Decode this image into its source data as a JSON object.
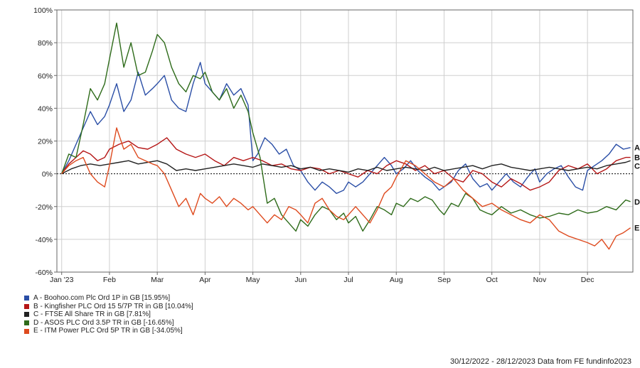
{
  "chart_data": {
    "type": "line",
    "title": "",
    "xlabel": "",
    "ylabel": "",
    "ylim": [
      -60,
      100
    ],
    "yticks": [
      100,
      80,
      60,
      40,
      20,
      0,
      -20,
      -40,
      -60
    ],
    "ytick_format": "{v}%",
    "x_tick_labels": [
      "Jan '23",
      "Feb",
      "Mar",
      "Apr",
      "May",
      "Jun",
      "Jul",
      "Aug",
      "Sep",
      "Oct",
      "Nov",
      "Dec"
    ],
    "x_tick_positions": [
      0,
      1,
      2,
      3,
      4,
      5,
      6,
      7,
      8,
      9,
      10,
      11
    ],
    "xlim": [
      -0.1,
      11.95
    ],
    "grid": true,
    "zero_line": "dashed",
    "legend_position": "bottom-left",
    "series": [
      {
        "key": "A",
        "name": "A - Boohoo.com Plc Ord 1P in GB [15.95%]",
        "color": "#2a4ea6",
        "x": [
          0,
          0.15,
          0.3,
          0.45,
          0.6,
          0.75,
          0.9,
          1.0,
          1.15,
          1.3,
          1.45,
          1.6,
          1.75,
          1.9,
          2.0,
          2.15,
          2.3,
          2.45,
          2.6,
          2.75,
          2.9,
          3.0,
          3.15,
          3.3,
          3.45,
          3.6,
          3.75,
          3.9,
          4.0,
          4.1,
          4.25,
          4.4,
          4.55,
          4.7,
          4.85,
          5.0,
          5.15,
          5.3,
          5.45,
          5.6,
          5.75,
          5.9,
          6.0,
          6.15,
          6.3,
          6.45,
          6.6,
          6.75,
          6.9,
          7.0,
          7.15,
          7.3,
          7.45,
          7.6,
          7.75,
          7.9,
          8.0,
          8.15,
          8.3,
          8.45,
          8.6,
          8.75,
          8.9,
          9.0,
          9.15,
          9.3,
          9.45,
          9.6,
          9.75,
          9.9,
          10.0,
          10.15,
          10.3,
          10.45,
          10.6,
          10.75,
          10.9,
          11.0,
          11.15,
          11.3,
          11.45,
          11.6,
          11.75,
          11.9
        ],
        "y": [
          0,
          8,
          18,
          28,
          38,
          30,
          35,
          42,
          55,
          38,
          45,
          62,
          48,
          52,
          55,
          60,
          45,
          40,
          38,
          55,
          68,
          55,
          50,
          45,
          55,
          48,
          52,
          42,
          8,
          12,
          22,
          18,
          12,
          15,
          5,
          2,
          -5,
          -10,
          -5,
          -8,
          -12,
          -10,
          -5,
          -8,
          -5,
          0,
          5,
          10,
          5,
          0,
          3,
          8,
          2,
          -2,
          -5,
          -10,
          -8,
          -5,
          2,
          6,
          -3,
          -8,
          -6,
          -10,
          -5,
          0,
          -5,
          -8,
          -2,
          3,
          -5,
          0,
          3,
          5,
          -2,
          -8,
          -10,
          2,
          5,
          8,
          12,
          18,
          15,
          16
        ]
      },
      {
        "key": "B",
        "name": "B - Kingfisher PLC Ord 15 5/7P TR in GB [10.04%]",
        "color": "#b51616",
        "x": [
          0,
          0.15,
          0.3,
          0.45,
          0.6,
          0.75,
          0.9,
          1.0,
          1.2,
          1.4,
          1.6,
          1.8,
          2.0,
          2.2,
          2.4,
          2.6,
          2.8,
          3.0,
          3.2,
          3.4,
          3.6,
          3.8,
          4.0,
          4.2,
          4.4,
          4.6,
          4.8,
          5.0,
          5.2,
          5.4,
          5.6,
          5.8,
          6.0,
          6.2,
          6.4,
          6.6,
          6.8,
          7.0,
          7.2,
          7.4,
          7.6,
          7.8,
          8.0,
          8.2,
          8.4,
          8.6,
          8.8,
          9.0,
          9.2,
          9.4,
          9.6,
          9.8,
          10.0,
          10.2,
          10.4,
          10.6,
          10.8,
          11.0,
          11.2,
          11.4,
          11.6,
          11.8,
          11.9
        ],
        "y": [
          0,
          6,
          10,
          14,
          12,
          8,
          10,
          15,
          18,
          20,
          16,
          15,
          18,
          22,
          15,
          12,
          10,
          12,
          8,
          5,
          10,
          8,
          10,
          8,
          5,
          6,
          3,
          2,
          4,
          3,
          0,
          2,
          0,
          -2,
          2,
          0,
          5,
          8,
          6,
          2,
          5,
          0,
          2,
          -3,
          -5,
          2,
          0,
          -5,
          -8,
          -3,
          -6,
          -10,
          -8,
          -5,
          2,
          5,
          3,
          6,
          0,
          3,
          8,
          10,
          10
        ]
      },
      {
        "key": "C",
        "name": "C - FTSE All Share TR in GB [7.81%]",
        "color": "#222222",
        "x": [
          0,
          0.2,
          0.4,
          0.6,
          0.8,
          1.0,
          1.2,
          1.4,
          1.6,
          1.8,
          2.0,
          2.2,
          2.4,
          2.6,
          2.8,
          3.0,
          3.2,
          3.4,
          3.6,
          3.8,
          4.0,
          4.2,
          4.4,
          4.6,
          4.8,
          5.0,
          5.2,
          5.4,
          5.6,
          5.8,
          6.0,
          6.2,
          6.4,
          6.6,
          6.8,
          7.0,
          7.2,
          7.4,
          7.6,
          7.8,
          8.0,
          8.2,
          8.4,
          8.6,
          8.8,
          9.0,
          9.2,
          9.4,
          9.6,
          9.8,
          10.0,
          10.2,
          10.4,
          10.6,
          10.8,
          11.0,
          11.2,
          11.4,
          11.6,
          11.8,
          11.9
        ],
        "y": [
          0,
          3,
          5,
          6,
          5,
          6,
          7,
          8,
          6,
          7,
          8,
          6,
          2,
          3,
          2,
          3,
          4,
          5,
          6,
          5,
          4,
          6,
          5,
          4,
          5,
          3,
          4,
          2,
          3,
          2,
          1,
          3,
          2,
          4,
          2,
          3,
          4,
          3,
          2,
          4,
          2,
          3,
          4,
          5,
          3,
          5,
          6,
          4,
          3,
          2,
          3,
          4,
          3,
          2,
          3,
          4,
          3,
          5,
          6,
          7,
          8
        ]
      },
      {
        "key": "D",
        "name": "D - ASOS PLC Ord 3.5P TR in GB [-16.65%]",
        "color": "#2e6b1a",
        "x": [
          0,
          0.15,
          0.3,
          0.45,
          0.6,
          0.75,
          0.9,
          1.0,
          1.15,
          1.3,
          1.45,
          1.6,
          1.75,
          1.9,
          2.0,
          2.15,
          2.3,
          2.45,
          2.6,
          2.75,
          2.9,
          3.0,
          3.15,
          3.3,
          3.45,
          3.6,
          3.75,
          3.9,
          4.0,
          4.15,
          4.3,
          4.45,
          4.6,
          4.75,
          4.9,
          5.0,
          5.15,
          5.3,
          5.45,
          5.6,
          5.75,
          5.9,
          6.0,
          6.15,
          6.3,
          6.45,
          6.6,
          6.75,
          6.9,
          7.0,
          7.15,
          7.3,
          7.45,
          7.6,
          7.75,
          7.9,
          8.0,
          8.15,
          8.3,
          8.45,
          8.6,
          8.75,
          8.9,
          9.0,
          9.2,
          9.4,
          9.6,
          9.8,
          10.0,
          10.2,
          10.4,
          10.6,
          10.8,
          11.0,
          11.2,
          11.4,
          11.6,
          11.8,
          11.9
        ],
        "y": [
          0,
          12,
          10,
          30,
          52,
          45,
          55,
          70,
          92,
          65,
          80,
          60,
          62,
          75,
          85,
          80,
          65,
          55,
          50,
          60,
          58,
          62,
          50,
          45,
          52,
          40,
          48,
          38,
          25,
          10,
          -18,
          -15,
          -25,
          -30,
          -35,
          -28,
          -32,
          -25,
          -20,
          -22,
          -28,
          -24,
          -30,
          -26,
          -35,
          -28,
          -20,
          -22,
          -25,
          -18,
          -20,
          -15,
          -17,
          -14,
          -16,
          -22,
          -25,
          -18,
          -20,
          -12,
          -15,
          -22,
          -24,
          -25,
          -20,
          -24,
          -22,
          -25,
          -27,
          -26,
          -24,
          -25,
          -22,
          -24,
          -23,
          -20,
          -22,
          -16,
          -17
        ]
      },
      {
        "key": "E",
        "name": "E - ITM Power PLC Ord 5P TR in GB [-34.05%]",
        "color": "#de4a1e",
        "x": [
          0,
          0.15,
          0.3,
          0.45,
          0.6,
          0.75,
          0.9,
          1.0,
          1.15,
          1.3,
          1.45,
          1.6,
          1.75,
          1.9,
          2.0,
          2.15,
          2.3,
          2.45,
          2.6,
          2.75,
          2.9,
          3.0,
          3.15,
          3.3,
          3.45,
          3.6,
          3.75,
          3.9,
          4.0,
          4.15,
          4.3,
          4.45,
          4.6,
          4.75,
          4.9,
          5.0,
          5.15,
          5.3,
          5.45,
          5.6,
          5.75,
          5.9,
          6.0,
          6.15,
          6.3,
          6.45,
          6.6,
          6.75,
          6.9,
          7.0,
          7.2,
          7.4,
          7.6,
          7.8,
          8.0,
          8.2,
          8.4,
          8.6,
          8.8,
          9.0,
          9.2,
          9.4,
          9.6,
          9.8,
          10.0,
          10.2,
          10.4,
          10.6,
          10.8,
          11.0,
          11.15,
          11.3,
          11.45,
          11.6,
          11.75,
          11.9
        ],
        "y": [
          0,
          5,
          8,
          10,
          0,
          -5,
          -8,
          5,
          28,
          15,
          18,
          10,
          8,
          6,
          5,
          0,
          -10,
          -20,
          -15,
          -25,
          -12,
          -15,
          -18,
          -14,
          -20,
          -15,
          -18,
          -22,
          -20,
          -25,
          -30,
          -25,
          -28,
          -20,
          -22,
          -25,
          -30,
          -18,
          -15,
          -22,
          -26,
          -28,
          -25,
          -20,
          -25,
          -30,
          -22,
          -12,
          -8,
          -2,
          8,
          5,
          0,
          -5,
          -8,
          -3,
          -10,
          -15,
          -20,
          -18,
          -22,
          -25,
          -28,
          -30,
          -25,
          -28,
          -35,
          -38,
          -40,
          -42,
          -44,
          -40,
          -46,
          -38,
          -36,
          -33
        ]
      }
    ]
  },
  "footer": {
    "text": "30/12/2022 - 28/12/2023 Data from FE fundinfo2023"
  }
}
